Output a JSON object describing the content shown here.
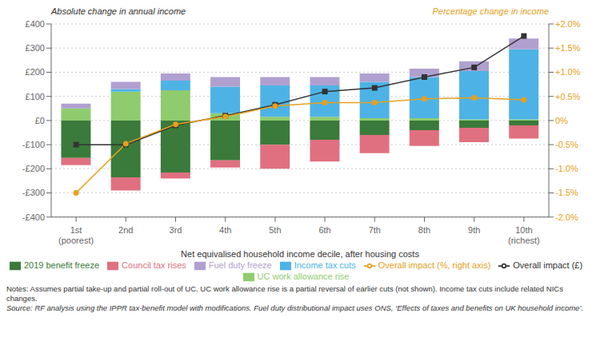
{
  "chart_data": {
    "type": "bar",
    "categories": [
      "1st\n(poorest)",
      "2nd",
      "3rd",
      "4th",
      "5th",
      "6th",
      "7th",
      "8th",
      "9th",
      "10th\n(richest)"
    ],
    "xlabel": "Net equivalised household income decile, after housing costs",
    "ylabel": "Absolute change in annual income",
    "y2label": "Percentage change in income",
    "annotations": [
      "Notes: Assumes partial take-up and partial roll-out of UC. UC work allowance rise is a partial reversal of earlier cuts (not shown). Income tax cuts include related NICs changes.",
      "Source: RF analysis using the IPPR tax-benefit model with modifications. Fuel duty distributional impact uses ONS, ‘Effects of taxes and benefits on UK household income’."
    ],
    "stacked": true,
    "grid": true,
    "legend": "bottom",
    "ylim": [
      -400,
      400
    ],
    "yticks": [
      {
        "value": -400,
        "label": "-£400"
      },
      {
        "value": -300,
        "label": "-£300"
      },
      {
        "value": -200,
        "label": "-£200"
      },
      {
        "value": -100,
        "label": "-£100"
      },
      {
        "value": 0,
        "label": "£0"
      },
      {
        "value": 100,
        "label": "£100"
      },
      {
        "value": 200,
        "label": "£200"
      },
      {
        "value": 300,
        "label": "£300"
      },
      {
        "value": 400,
        "label": "£400"
      }
    ],
    "y2lim": [
      -2.0,
      2.0
    ],
    "y2ticks": [
      {
        "value": -2.0,
        "label": "-2.0%"
      },
      {
        "value": -1.5,
        "label": "-1.5%"
      },
      {
        "value": -1.0,
        "label": "-1.0%"
      },
      {
        "value": -0.5,
        "label": "-0.5%"
      },
      {
        "value": 0.0,
        "label": "0%"
      },
      {
        "value": 0.5,
        "label": "+0.5%"
      },
      {
        "value": 1.0,
        "label": "+1.0%"
      },
      {
        "value": 1.5,
        "label": "+1.5%"
      },
      {
        "value": 2.0,
        "label": "+2.0%"
      }
    ],
    "series": [
      {
        "name": "2019 benefit freeze",
        "type": "bar",
        "color": "#3a7a3a",
        "values": [
          -155,
          -235,
          -215,
          -165,
          -100,
          -80,
          -60,
          -40,
          -30,
          -20
        ]
      },
      {
        "name": "UC work allowance rise",
        "type": "bar",
        "color": "#8fcc6e",
        "values": [
          50,
          120,
          125,
          30,
          15,
          15,
          10,
          10,
          5,
          5
        ]
      },
      {
        "name": "Income tax cuts",
        "type": "bar",
        "color": "#4db3e6",
        "values": [
          0,
          10,
          40,
          110,
          130,
          130,
          150,
          170,
          200,
          290
        ]
      },
      {
        "name": "Council tax rises",
        "type": "bar",
        "color": "#e07080",
        "values": [
          -30,
          -55,
          -25,
          -30,
          -100,
          -90,
          -75,
          -65,
          -60,
          -55
        ]
      },
      {
        "name": "Fuel duty freeze",
        "type": "bar",
        "color": "#b0a0d0",
        "values": [
          20,
          30,
          30,
          40,
          35,
          35,
          35,
          35,
          40,
          45
        ]
      },
      {
        "name": "Overall impact (£)",
        "type": "line",
        "color": "#333333",
        "marker": "square",
        "values": [
          -100,
          -100,
          -20,
          20,
          65,
          120,
          135,
          180,
          220,
          350
        ]
      },
      {
        "name": "Overall impact (%, right axis)",
        "type": "line",
        "axis": "y2",
        "color": "#e6a020",
        "marker": "circle",
        "values": [
          -1.5,
          -0.48,
          -0.08,
          0.08,
          0.3,
          0.37,
          0.37,
          0.45,
          0.47,
          0.43
        ]
      }
    ]
  }
}
